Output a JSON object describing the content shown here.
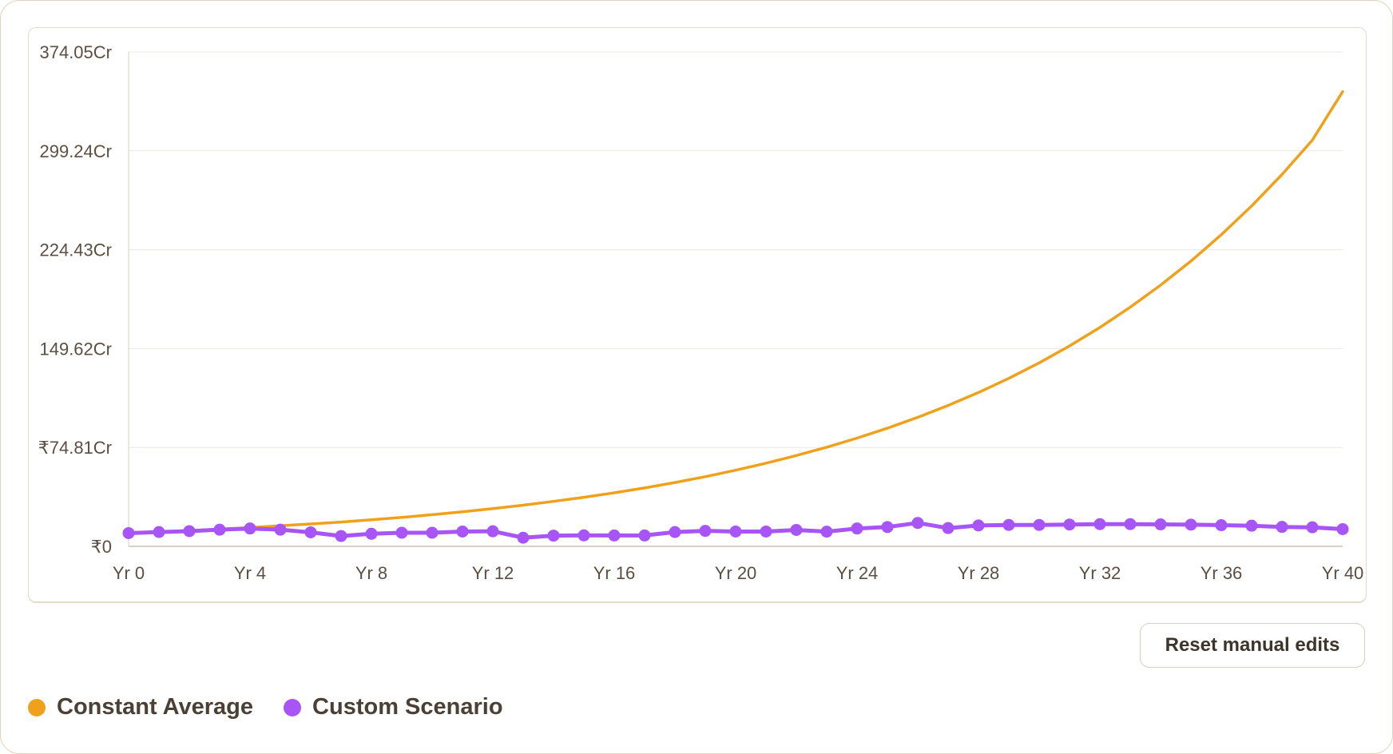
{
  "chart_data": {
    "type": "line",
    "x": [
      0,
      1,
      2,
      3,
      4,
      5,
      6,
      7,
      8,
      9,
      10,
      11,
      12,
      13,
      14,
      15,
      16,
      17,
      18,
      19,
      20,
      21,
      22,
      23,
      24,
      25,
      26,
      27,
      28,
      29,
      30,
      31,
      32,
      33,
      34,
      35,
      36,
      37,
      38,
      39,
      40
    ],
    "x_tick_values": [
      0,
      4,
      8,
      12,
      16,
      20,
      24,
      28,
      32,
      36,
      40
    ],
    "x_tick_labels": [
      "Yr 0",
      "Yr 4",
      "Yr 8",
      "Yr 12",
      "Yr 16",
      "Yr 20",
      "Yr 24",
      "Yr 28",
      "Yr 32",
      "Yr 36",
      "Yr 40"
    ],
    "y_tick_values": [
      0,
      74.81,
      149.62,
      224.43,
      299.24,
      374.05
    ],
    "y_tick_labels": [
      "₹0",
      "₹74.81Cr",
      "149.62Cr",
      "224.43Cr",
      "299.24Cr",
      "374.05Cr"
    ],
    "ylim": [
      0,
      374.05
    ],
    "xlim": [
      0,
      40
    ],
    "grid": true,
    "legend_position": "bottom-left",
    "series": [
      {
        "name": "Constant Average",
        "color": "#f0a11b",
        "markers": false,
        "values": [
          10.0,
          10.9,
          11.9,
          13.0,
          14.2,
          15.5,
          16.9,
          18.4,
          20.1,
          21.9,
          23.9,
          26.1,
          28.5,
          31.1,
          34.0,
          37.1,
          40.5,
          44.2,
          48.3,
          52.7,
          57.6,
          62.9,
          68.7,
          75.0,
          81.9,
          89.4,
          97.6,
          106.6,
          116.4,
          127.1,
          138.8,
          151.6,
          165.6,
          180.9,
          197.6,
          215.8,
          235.7,
          257.5,
          281.3,
          307.3,
          344.0
        ]
      },
      {
        "name": "Custom Scenario",
        "color": "#a855f7",
        "markers": true,
        "values": [
          10.0,
          10.8,
          11.5,
          12.6,
          13.5,
          12.6,
          10.6,
          7.8,
          9.5,
          10.3,
          10.3,
          11.2,
          11.4,
          6.5,
          8.1,
          8.3,
          8.2,
          8.2,
          10.8,
          11.7,
          11.2,
          11.2,
          12.4,
          11.1,
          13.5,
          14.6,
          17.7,
          13.8,
          15.8,
          16.2,
          16.2,
          16.5,
          16.8,
          16.8,
          16.6,
          16.4,
          16.0,
          15.6,
          14.7,
          14.4,
          13.0
        ]
      }
    ]
  },
  "actions": {
    "reset_label": "Reset manual edits"
  }
}
